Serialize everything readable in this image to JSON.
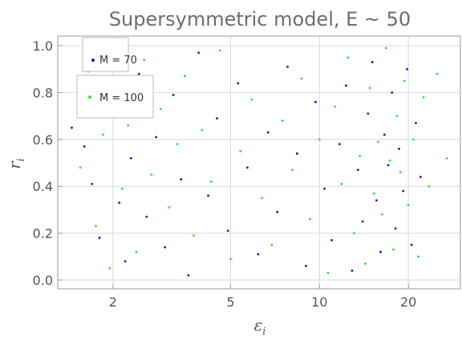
{
  "chart_data": {
    "type": "scatter",
    "title": "Supersymmetric model, E ~ 50",
    "xlabel": {
      "base": "ε",
      "sub": "i"
    },
    "ylabel": {
      "base": "r",
      "sub": "i"
    },
    "x_scale": "log",
    "xlim": [
      1.3,
      30
    ],
    "ylim": [
      0.0,
      1.0
    ],
    "x_ticks": [
      {
        "value": 2,
        "label": "2"
      },
      {
        "value": 5,
        "label": "5"
      },
      {
        "value": 10,
        "label": "10"
      },
      {
        "value": 20,
        "label": "20"
      }
    ],
    "y_ticks": [
      {
        "value": 0.0,
        "label": "0.0"
      },
      {
        "value": 0.2,
        "label": "0.2"
      },
      {
        "value": 0.4,
        "label": "0.4"
      },
      {
        "value": 0.6,
        "label": "0.6"
      },
      {
        "value": 0.8,
        "label": "0.8"
      },
      {
        "value": 1.0,
        "label": "1.0"
      }
    ],
    "grid": true,
    "legend_position": "top-left",
    "series": [
      {
        "name": "M = 70",
        "color": "#1515c8",
        "points": [
          [
            1.45,
            0.65
          ],
          [
            1.6,
            0.57
          ],
          [
            1.7,
            0.41
          ],
          [
            1.8,
            0.18
          ],
          [
            1.9,
            0.95
          ],
          [
            2.0,
            0.72
          ],
          [
            2.1,
            0.33
          ],
          [
            2.2,
            0.08
          ],
          [
            2.3,
            0.52
          ],
          [
            2.45,
            0.88
          ],
          [
            2.6,
            0.27
          ],
          [
            2.8,
            0.61
          ],
          [
            3.0,
            0.14
          ],
          [
            3.2,
            0.79
          ],
          [
            3.4,
            0.43
          ],
          [
            3.6,
            0.02
          ],
          [
            3.9,
            0.97
          ],
          [
            4.2,
            0.36
          ],
          [
            4.5,
            0.69
          ],
          [
            4.9,
            0.21
          ],
          [
            5.3,
            0.84
          ],
          [
            5.7,
            0.48
          ],
          [
            6.2,
            0.11
          ],
          [
            6.7,
            0.63
          ],
          [
            7.2,
            0.29
          ],
          [
            7.8,
            0.91
          ],
          [
            8.4,
            0.54
          ],
          [
            9.0,
            0.06
          ],
          [
            9.7,
            0.76
          ],
          [
            10.4,
            0.39
          ],
          [
            11.0,
            0.17
          ],
          [
            11.7,
            0.58
          ],
          [
            12.3,
            0.83
          ],
          [
            12.9,
            0.04
          ],
          [
            13.5,
            0.47
          ],
          [
            14.0,
            0.25
          ],
          [
            14.6,
            0.71
          ],
          [
            15.1,
            0.93
          ],
          [
            15.6,
            0.34
          ],
          [
            16.1,
            0.12
          ],
          [
            16.6,
            0.62
          ],
          [
            17.1,
            0.49
          ],
          [
            17.6,
            0.8
          ],
          [
            18.1,
            0.22
          ],
          [
            18.6,
            0.56
          ],
          [
            19.2,
            0.38
          ],
          [
            19.8,
            0.9
          ],
          [
            20.5,
            0.15
          ],
          [
            21.2,
            0.67
          ],
          [
            22.0,
            0.44
          ]
        ]
      },
      {
        "name": "M = 100",
        "color": "#22ee22",
        "points": [
          [
            1.55,
            0.48
          ],
          [
            1.65,
            0.89
          ],
          [
            1.75,
            0.23
          ],
          [
            1.85,
            0.62
          ],
          [
            1.95,
            0.05
          ],
          [
            2.05,
            0.81
          ],
          [
            2.15,
            0.39
          ],
          [
            2.25,
            0.66
          ],
          [
            2.4,
            0.12
          ],
          [
            2.55,
            0.94
          ],
          [
            2.7,
            0.45
          ],
          [
            2.9,
            0.73
          ],
          [
            3.1,
            0.31
          ],
          [
            3.3,
            0.58
          ],
          [
            3.5,
            0.87
          ],
          [
            3.75,
            0.19
          ],
          [
            4.0,
            0.64
          ],
          [
            4.3,
            0.42
          ],
          [
            4.6,
            0.98
          ],
          [
            5.0,
            0.09
          ],
          [
            5.4,
            0.55
          ],
          [
            5.9,
            0.77
          ],
          [
            6.4,
            0.35
          ],
          [
            6.9,
            0.15
          ],
          [
            7.5,
            0.68
          ],
          [
            8.1,
            0.47
          ],
          [
            8.7,
            0.86
          ],
          [
            9.3,
            0.26
          ],
          [
            10.0,
            0.6
          ],
          [
            10.7,
            0.03
          ],
          [
            11.3,
            0.74
          ],
          [
            11.9,
            0.41
          ],
          [
            12.5,
            0.95
          ],
          [
            13.1,
            0.2
          ],
          [
            13.7,
            0.53
          ],
          [
            14.3,
            0.07
          ],
          [
            14.8,
            0.82
          ],
          [
            15.3,
            0.37
          ],
          [
            15.8,
            0.59
          ],
          [
            16.3,
            0.28
          ],
          [
            16.8,
            0.99
          ],
          [
            17.3,
            0.51
          ],
          [
            17.8,
            0.13
          ],
          [
            18.3,
            0.7
          ],
          [
            18.8,
            0.46
          ],
          [
            19.4,
            0.85
          ],
          [
            20.0,
            0.32
          ],
          [
            20.8,
            0.6
          ],
          [
            21.6,
            0.1
          ],
          [
            22.5,
            0.78
          ],
          [
            23.5,
            0.4
          ],
          [
            25.0,
            0.88
          ],
          [
            27.0,
            0.52
          ]
        ]
      }
    ]
  }
}
